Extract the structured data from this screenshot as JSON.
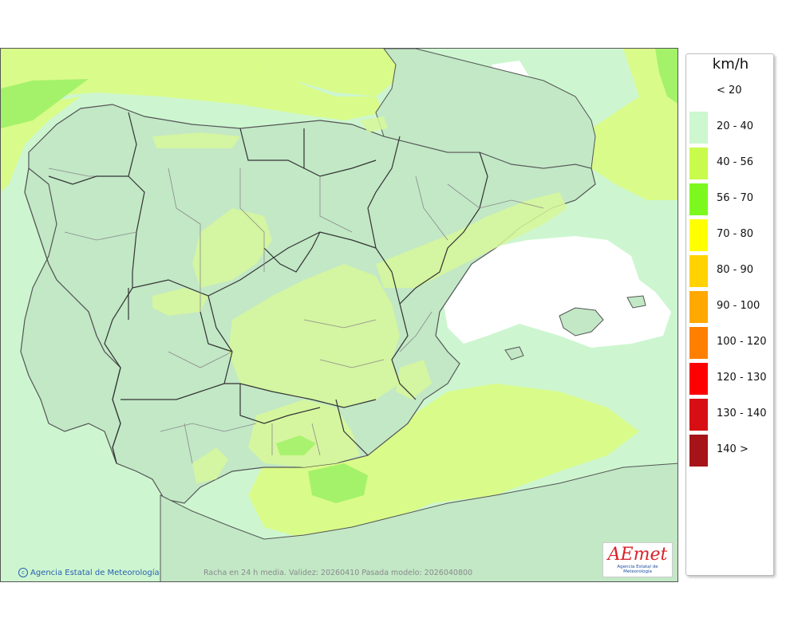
{
  "map": {
    "credit": "Agencia Estatal de Meteorología",
    "validity_text": "Racha en 24 h media. Validez: 20260410 Pasada modelo: 2026040800",
    "logo_text": "AEmet",
    "logo_subtitle": "Agencia Estatal de Meteorología"
  },
  "legend": {
    "unit": "km/h",
    "classes": [
      {
        "label": "< 20",
        "color": "#ffffff"
      },
      {
        "label": "20 - 40",
        "color": "#ccf7cf"
      },
      {
        "label": "40 - 56",
        "color": "#c8fb4b"
      },
      {
        "label": "56 - 70",
        "color": "#7cf81f"
      },
      {
        "label": "70 - 80",
        "color": "#ffff00"
      },
      {
        "label": "80 - 90",
        "color": "#ffd200"
      },
      {
        "label": "90 - 100",
        "color": "#ffa800"
      },
      {
        "label": "100 - 120",
        "color": "#ff8000"
      },
      {
        "label": "120 - 130",
        "color": "#ff0000"
      },
      {
        "label": "130 - 140",
        "color": "#d70f14"
      },
      {
        "label": "140 >",
        "color": "#a61319"
      }
    ]
  }
}
